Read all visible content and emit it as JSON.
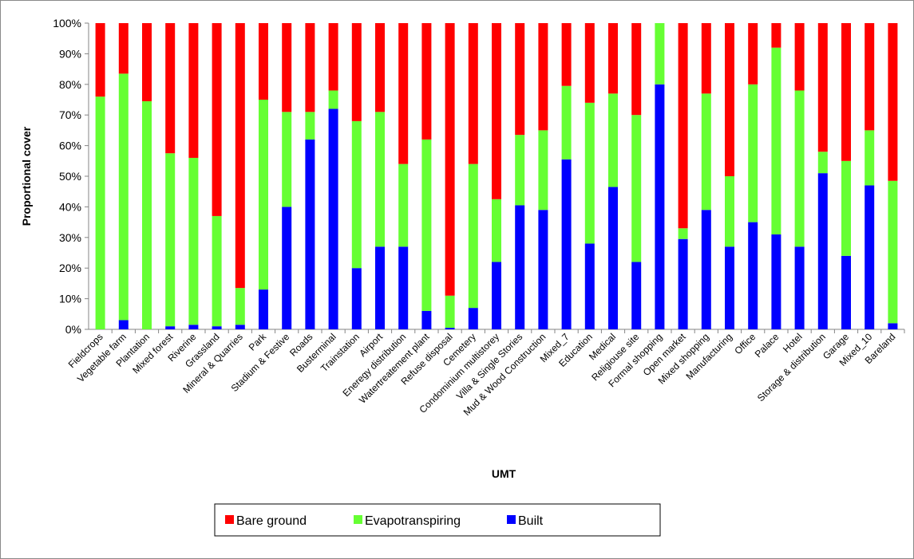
{
  "chart_data": {
    "type": "bar",
    "stacked": true,
    "title": "",
    "xlabel": "UMT",
    "ylabel": "Proportional cover",
    "ylim": [
      0,
      100
    ],
    "y_ticks": [
      "0%",
      "10%",
      "20%",
      "30%",
      "40%",
      "50%",
      "60%",
      "70%",
      "80%",
      "90%",
      "100%"
    ],
    "grid": false,
    "legend_position": "bottom",
    "categories": [
      "Fieldcrops",
      "Vegetable farm",
      "Plantation",
      "Mixed forest",
      "Riverine",
      "Grassland",
      "Mineral & Quarries",
      "Park",
      "Stadium & Festive",
      "Roads",
      "Busterminal",
      "Trainstation",
      "Airport",
      "Eneregy distribution",
      "Watertreatement plant",
      "Refuse disposal",
      "Cemetery",
      "Condominium multistorey",
      "Villa & Single Stories",
      "Mud & Wood Construction",
      "Mixed_7",
      "Education",
      "Medical",
      "Religiouse site",
      "Formal shopping",
      "Open market",
      "Mixed shopping",
      "Manufacturing",
      "Office",
      "Palace",
      "Hotel",
      "Storage & distribution",
      "Garage",
      "Mixed_10",
      "Bareland"
    ],
    "series": [
      {
        "name": "Built",
        "color": "#0000ff",
        "values": [
          0,
          3,
          0,
          1,
          1.5,
          1,
          1.5,
          13,
          40,
          62,
          72,
          20,
          27,
          27,
          6,
          0.5,
          7,
          22,
          40.5,
          39,
          55.5,
          28,
          46.5,
          22,
          80,
          29.5,
          39,
          27,
          35,
          31,
          27,
          51,
          24,
          47,
          2
        ]
      },
      {
        "name": "Evapotranspiring",
        "color": "#66ff33",
        "values": [
          76,
          80.5,
          74.5,
          56.5,
          54.5,
          36,
          12,
          62,
          31,
          9,
          6,
          48,
          44,
          27,
          56,
          10.5,
          47,
          20.5,
          23,
          26,
          24,
          46,
          30.5,
          48,
          20,
          3.5,
          38,
          23,
          45,
          61,
          51,
          7,
          31,
          18,
          46.5
        ]
      },
      {
        "name": "Bare ground",
        "color": "#ff0000",
        "values": [
          24,
          16.5,
          25.5,
          42.5,
          44,
          63,
          86.5,
          25,
          29,
          29,
          22,
          32,
          29,
          46,
          38,
          89,
          46,
          57.5,
          36.5,
          35,
          20.5,
          26,
          23,
          30,
          0,
          67,
          23,
          50,
          20,
          8,
          22,
          42,
          45,
          35,
          51.5
        ]
      }
    ],
    "legend": [
      "Bare ground",
      "Evapotranspiring",
      "Built"
    ]
  }
}
